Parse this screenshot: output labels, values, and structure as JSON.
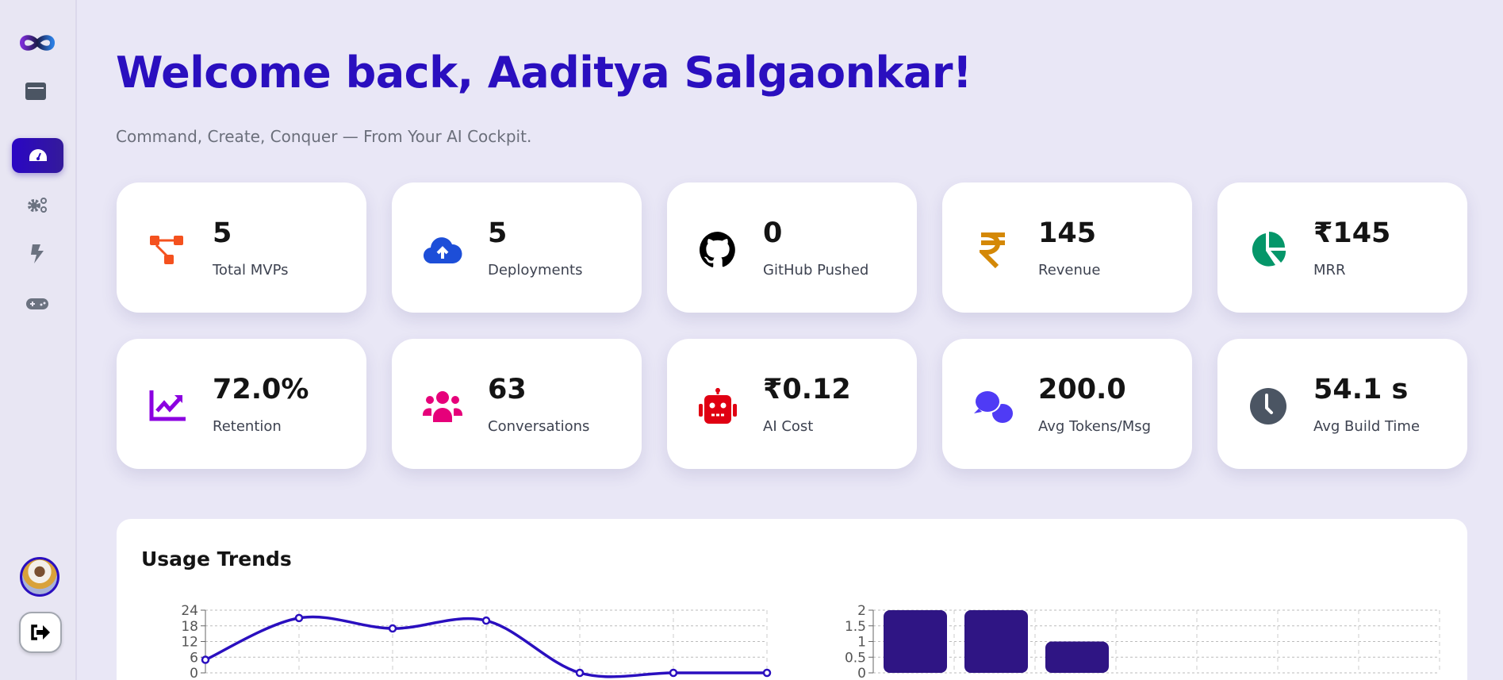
{
  "sidebar": {
    "items": [
      {
        "name": "logo",
        "icon": "infinity-logo-icon"
      },
      {
        "name": "panel",
        "icon": "window-icon"
      },
      {
        "name": "dashboard",
        "icon": "tachometer-icon",
        "active": true
      },
      {
        "name": "settings",
        "icon": "gears-icon"
      },
      {
        "name": "actions",
        "icon": "bolt-icon"
      },
      {
        "name": "games",
        "icon": "gamepad-icon"
      }
    ],
    "avatar": "user-avatar",
    "logout_icon": "sign-out-icon"
  },
  "header": {
    "title": "Welcome back, Aaditya Salgaonkar!",
    "subtitle": "Command, Create, Conquer — From Your AI Cockpit."
  },
  "colors": {
    "accent": "#2a0fbf",
    "page_bg": "#e9e7f6",
    "line": "#2a0fbf",
    "bar": "#2f1584"
  },
  "stats": [
    {
      "value": "5",
      "label": "Total MVPs",
      "icon": "sitemap-icon",
      "color": "#f4511e"
    },
    {
      "value": "5",
      "label": "Deployments",
      "icon": "cloud-upload-icon",
      "color": "#1d4ed8"
    },
    {
      "value": "0",
      "label": "GitHub Pushed",
      "icon": "github-icon",
      "color": "#000000"
    },
    {
      "value": "145",
      "label": "Revenue",
      "icon": "rupee-icon",
      "color": "#d48806"
    },
    {
      "value": "₹145",
      "label": "MRR",
      "icon": "pie-chart-icon",
      "color": "#059669"
    },
    {
      "value": "72.0%",
      "label": "Retention",
      "icon": "chart-line-icon",
      "color": "#8b00e0"
    },
    {
      "value": "63",
      "label": "Conversations",
      "icon": "users-icon",
      "color": "#e6007a"
    },
    {
      "value": "₹0.12",
      "label": "AI Cost",
      "icon": "robot-icon",
      "color": "#e00012"
    },
    {
      "value": "200.0",
      "label": "Avg Tokens/Msg",
      "icon": "comments-icon",
      "color": "#4f3bf5"
    },
    {
      "value": "54.1 s",
      "label": "Avg Build Time",
      "icon": "clock-icon",
      "color": "#4b5563"
    }
  ],
  "usage": {
    "title": "Usage Trends"
  },
  "chart_data": [
    {
      "type": "line",
      "values": [
        5,
        21,
        17,
        20,
        0,
        0,
        0
      ],
      "ylim": [
        0,
        24
      ],
      "yticks": [
        "0",
        "6",
        "12",
        "18",
        "24"
      ],
      "grid": true,
      "smooth": true
    },
    {
      "type": "bar",
      "values": [
        2,
        2,
        1,
        0,
        0,
        0,
        0
      ],
      "ylim": [
        0,
        2
      ],
      "yticks": [
        "0",
        "0.5",
        "1",
        "1.5",
        "2"
      ],
      "grid": true
    }
  ]
}
